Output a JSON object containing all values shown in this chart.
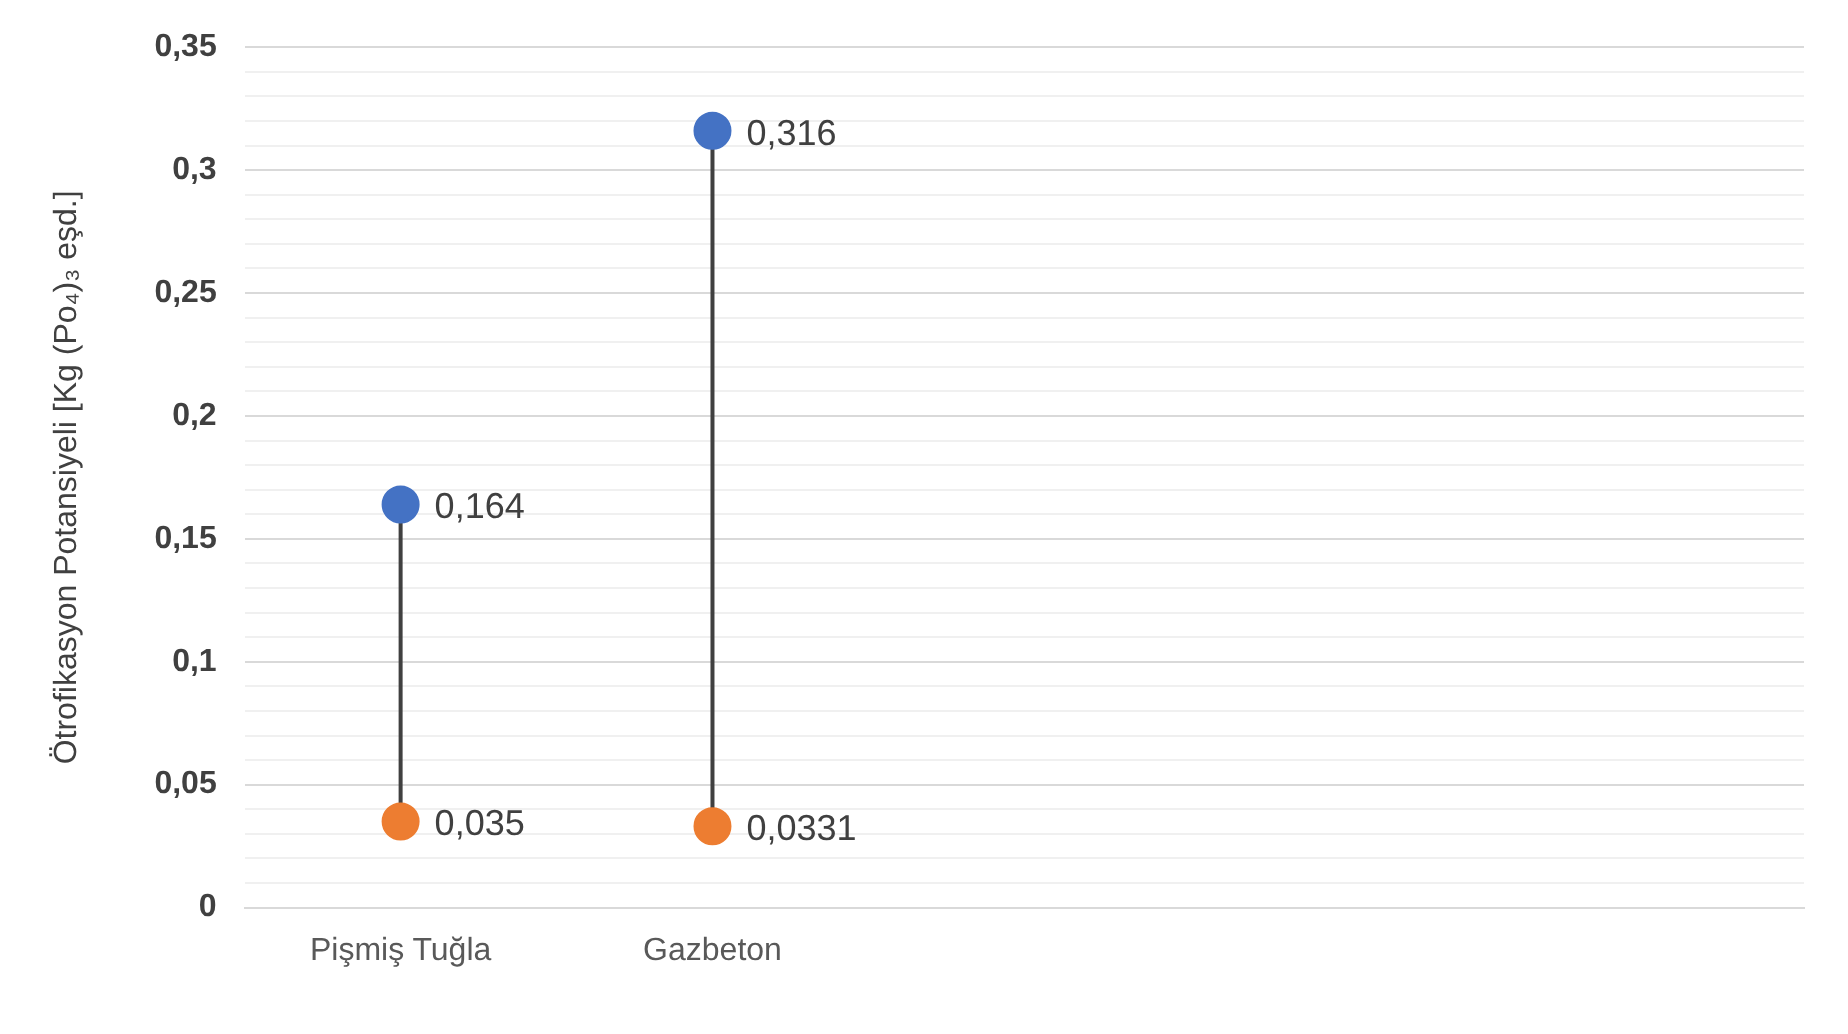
{
  "chart_data": {
    "type": "scatter",
    "ylabel": "Ötrofikasyon Potansiyeli [Kg (Po₄)₃ eşd.]",
    "categories": [
      "Pişmiş Tuğla",
      "Gazbeton",
      null,
      null,
      null
    ],
    "marker": "circle",
    "grid": "y",
    "legend": false,
    "series": [
      {
        "color": "#4472c4",
        "values": [
          0.164,
          0.316,
          null,
          null,
          null
        ],
        "value_labels": [
          "0,164",
          "0,316",
          null,
          null,
          null
        ]
      },
      {
        "color": "#ed7d31",
        "values": [
          0.035,
          0.0331,
          null,
          null,
          null
        ],
        "value_labels": [
          "0,035",
          "0,0331",
          null,
          null,
          null
        ]
      }
    ],
    "ylim": [
      0,
      0.35
    ],
    "yticks": [
      {
        "value": 0,
        "label": "0"
      },
      {
        "value": 0.01,
        "label": null
      },
      {
        "value": 0.02,
        "label": null
      },
      {
        "value": 0.03,
        "label": null
      },
      {
        "value": 0.04,
        "label": null
      },
      {
        "value": 0.05,
        "label": "0,05"
      },
      {
        "value": 0.06,
        "label": null
      },
      {
        "value": 0.07,
        "label": null
      },
      {
        "value": 0.08,
        "label": null
      },
      {
        "value": 0.09,
        "label": null
      },
      {
        "value": 0.1,
        "label": "0,1"
      },
      {
        "value": 0.11,
        "label": null
      },
      {
        "value": 0.12,
        "label": null
      },
      {
        "value": 0.13,
        "label": null
      },
      {
        "value": 0.14,
        "label": null
      },
      {
        "value": 0.15,
        "label": "0,15"
      },
      {
        "value": 0.16,
        "label": null
      },
      {
        "value": 0.17,
        "label": null
      },
      {
        "value": 0.18,
        "label": null
      },
      {
        "value": 0.19,
        "label": null
      },
      {
        "value": 0.2,
        "label": "0,2"
      },
      {
        "value": 0.21,
        "label": null
      },
      {
        "value": 0.22,
        "label": null
      },
      {
        "value": 0.23,
        "label": null
      },
      {
        "value": 0.24,
        "label": null
      },
      {
        "value": 0.25,
        "label": "0,25"
      },
      {
        "value": 0.26,
        "label": null
      },
      {
        "value": 0.27,
        "label": null
      },
      {
        "value": 0.28,
        "label": null
      },
      {
        "value": 0.29,
        "label": null
      },
      {
        "value": 0.3,
        "label": "0,3"
      },
      {
        "value": 0.31,
        "label": null
      },
      {
        "value": 0.32,
        "label": null
      },
      {
        "value": 0.33,
        "label": null
      },
      {
        "value": 0.34,
        "label": null
      },
      {
        "value": 0.35,
        "label": "0,35"
      }
    ]
  }
}
